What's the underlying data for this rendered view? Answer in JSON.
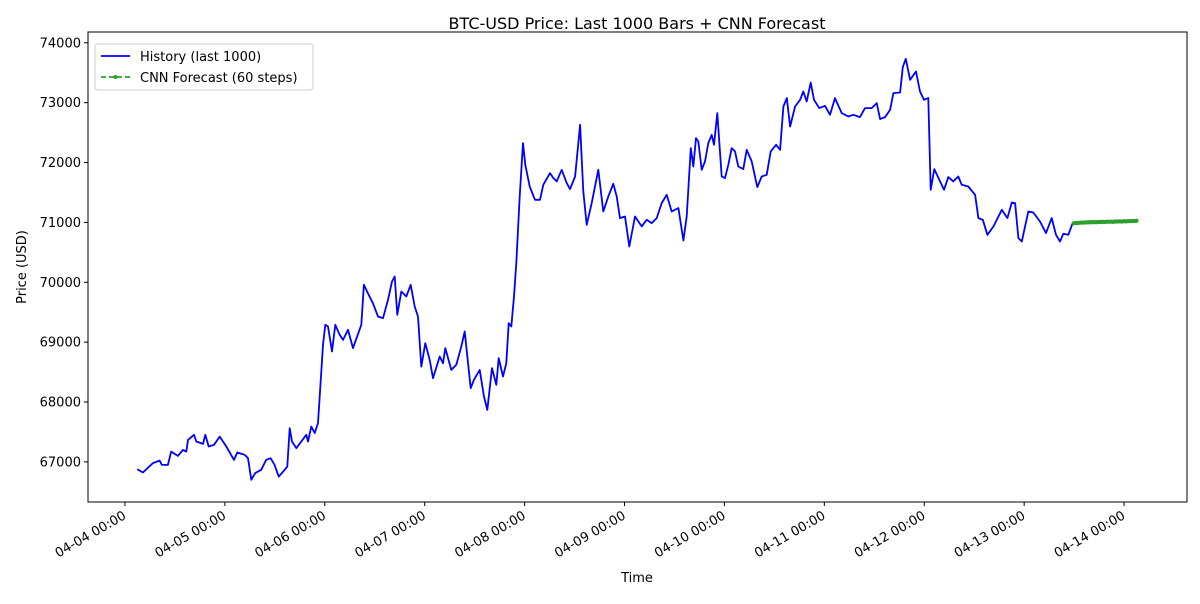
{
  "chart_data": {
    "type": "line",
    "title": "BTC-USD Price: Last 1000 Bars + CNN Forecast",
    "xlabel": "Time",
    "ylabel": "Price (USD)",
    "x_units": "days since 04-04 00:00",
    "xlim": [
      -0.37,
      10.63
    ],
    "ylim": [
      66330,
      74180
    ],
    "grid": false,
    "legend_position": "top-left",
    "x_ticks": [
      {
        "value": 0,
        "label": "04-04 00:00"
      },
      {
        "value": 1,
        "label": "04-05 00:00"
      },
      {
        "value": 2,
        "label": "04-06 00:00"
      },
      {
        "value": 3,
        "label": "04-07 00:00"
      },
      {
        "value": 4,
        "label": "04-08 00:00"
      },
      {
        "value": 5,
        "label": "04-09 00:00"
      },
      {
        "value": 6,
        "label": "04-10 00:00"
      },
      {
        "value": 7,
        "label": "04-11 00:00"
      },
      {
        "value": 8,
        "label": "04-12 00:00"
      },
      {
        "value": 9,
        "label": "04-13 00:00"
      },
      {
        "value": 10,
        "label": "04-14 00:00"
      }
    ],
    "y_ticks": [
      {
        "value": 67000,
        "label": "67000"
      },
      {
        "value": 68000,
        "label": "68000"
      },
      {
        "value": 69000,
        "label": "69000"
      },
      {
        "value": 70000,
        "label": "70000"
      },
      {
        "value": 71000,
        "label": "71000"
      },
      {
        "value": 72000,
        "label": "72000"
      },
      {
        "value": 73000,
        "label": "73000"
      },
      {
        "value": 74000,
        "label": "74000"
      }
    ],
    "series": [
      {
        "name": "History (last 1000)",
        "color": "#0000ff",
        "style": "solid",
        "x": [
          0.123,
          0.18,
          0.28,
          0.347,
          0.37,
          0.43,
          0.463,
          0.53,
          0.58,
          0.614,
          0.631,
          0.691,
          0.714,
          0.781,
          0.804,
          0.838,
          0.891,
          0.948,
          1.014,
          1.091,
          1.124,
          1.198,
          1.231,
          1.264,
          1.304,
          1.364,
          1.414,
          1.458,
          1.498,
          1.539,
          1.599,
          1.625,
          1.649,
          1.672,
          1.715,
          1.765,
          1.815,
          1.832,
          1.865,
          1.899,
          1.932,
          1.949,
          1.982,
          2.005,
          2.032,
          2.072,
          2.105,
          2.149,
          2.182,
          2.232,
          2.282,
          2.365,
          2.392,
          2.432,
          2.482,
          2.533,
          2.583,
          2.633,
          2.673,
          2.7,
          2.726,
          2.766,
          2.816,
          2.86,
          2.9,
          2.933,
          2.966,
          3.006,
          3.05,
          3.083,
          3.15,
          3.183,
          3.206,
          3.266,
          3.316,
          3.366,
          3.4,
          3.46,
          3.493,
          3.551,
          3.594,
          3.627,
          3.674,
          3.717,
          3.741,
          3.784,
          3.817,
          3.841,
          3.867,
          3.894,
          3.917,
          3.951,
          3.984,
          4.007,
          4.051,
          4.104,
          4.154,
          4.187,
          4.254,
          4.288,
          4.321,
          4.371,
          4.421,
          4.454,
          4.505,
          4.555,
          4.588,
          4.622,
          4.672,
          4.738,
          4.788,
          4.838,
          4.888,
          4.922,
          4.955,
          5.005,
          5.048,
          5.105,
          5.172,
          5.222,
          5.272,
          5.322,
          5.372,
          5.422,
          5.472,
          5.539,
          5.589,
          5.622,
          5.663,
          5.689,
          5.716,
          5.739,
          5.773,
          5.806,
          5.839,
          5.873,
          5.896,
          5.929,
          5.973,
          6.006,
          6.039,
          6.073,
          6.106,
          6.139,
          6.189,
          6.223,
          6.273,
          6.329,
          6.373,
          6.423,
          6.463,
          6.517,
          6.557,
          6.59,
          6.624,
          6.657,
          6.707,
          6.757,
          6.79,
          6.824,
          6.864,
          6.897,
          6.95,
          7.007,
          7.057,
          7.107,
          7.174,
          7.24,
          7.29,
          7.357,
          7.407,
          7.474,
          7.524,
          7.558,
          7.608,
          7.658,
          7.691,
          7.758,
          7.785,
          7.815,
          7.858,
          7.918,
          7.958,
          7.998,
          8.041,
          8.065,
          8.101,
          8.198,
          8.241,
          8.291,
          8.341,
          8.375,
          8.441,
          8.509,
          8.542,
          8.586,
          8.632,
          8.692,
          8.776,
          8.832,
          8.876,
          8.909,
          8.942,
          8.976,
          9.042,
          9.092,
          9.159,
          9.219,
          9.276,
          9.319,
          9.359,
          9.392,
          9.442,
          9.486
        ],
        "y": [
          66878,
          66822,
          66979,
          67022,
          66950,
          66950,
          67172,
          67100,
          67200,
          67172,
          67368,
          67452,
          67340,
          67301,
          67452,
          67257,
          67285,
          67423,
          67257,
          67033,
          67156,
          67118,
          67062,
          66700,
          66812,
          66867,
          67034,
          67062,
          66950,
          66755,
          66867,
          66922,
          67563,
          67340,
          67229,
          67340,
          67452,
          67340,
          67590,
          67480,
          67647,
          68091,
          68955,
          69290,
          69261,
          68843,
          69290,
          69122,
          69038,
          69206,
          68900,
          69290,
          69957,
          69818,
          69651,
          69428,
          69400,
          69706,
          70012,
          70096,
          69456,
          69846,
          69763,
          69957,
          69595,
          69428,
          68592,
          68983,
          68704,
          68398,
          68760,
          68649,
          68900,
          68537,
          68621,
          68927,
          69177,
          68231,
          68370,
          68537,
          68091,
          67869,
          68566,
          68287,
          68733,
          68426,
          68649,
          69317,
          69261,
          69763,
          70320,
          71432,
          72324,
          71962,
          71599,
          71377,
          71377,
          71628,
          71823,
          71740,
          71684,
          71879,
          71656,
          71556,
          71767,
          72630,
          71516,
          70960,
          71322,
          71879,
          71182,
          71432,
          71645,
          71432,
          71071,
          71099,
          70597,
          71099,
          70933,
          71043,
          70988,
          71071,
          71322,
          71461,
          71182,
          71238,
          70697,
          71099,
          72241,
          71934,
          72408,
          72352,
          71879,
          72018,
          72324,
          72463,
          72296,
          72826,
          71767,
          71740,
          71962,
          72241,
          72185,
          71934,
          71890,
          72213,
          72018,
          71589,
          71767,
          71795,
          72185,
          72296,
          72213,
          72936,
          73076,
          72602,
          72936,
          73048,
          73187,
          73019,
          73337,
          73048,
          72909,
          72948,
          72797,
          73076,
          72826,
          72769,
          72797,
          72759,
          72909,
          72909,
          72993,
          72725,
          72759,
          72880,
          73160,
          73170,
          73594,
          73733,
          73382,
          73521,
          73187,
          73048,
          73076,
          71544,
          71890,
          71544,
          71756,
          71684,
          71767,
          71628,
          71599,
          71461,
          71071,
          71043,
          70792,
          70932,
          71210,
          71071,
          71332,
          71322,
          70737,
          70681,
          71182,
          71165,
          71015,
          70821,
          71071,
          70792,
          70681,
          70809,
          70792,
          70988
        ]
      },
      {
        "name": "CNN Forecast (60 steps)",
        "color": "#2ca02c",
        "style": "dashed-with-markers",
        "x_start": 9.497,
        "x_step": 0.01064,
        "y": [
          70985,
          70988,
          70990,
          70987,
          70992,
          70995,
          70993,
          70996,
          70998,
          70995,
          70997,
          71000,
          70998,
          71001,
          71003,
          71000,
          71002,
          71005,
          71003,
          71006,
          71004,
          71001,
          71003,
          71006,
          71008,
          71005,
          71007,
          71010,
          71008,
          71006,
          71009,
          71011,
          71013,
          71010,
          71012,
          71014,
          71011,
          71009,
          71012,
          71015,
          71017,
          71014,
          71016,
          71018,
          71015,
          71013,
          71016,
          71018,
          71020,
          71017,
          71019,
          71021,
          71022,
          71020,
          71022,
          71024,
          71023,
          71021,
          71024,
          71026
        ]
      }
    ]
  }
}
